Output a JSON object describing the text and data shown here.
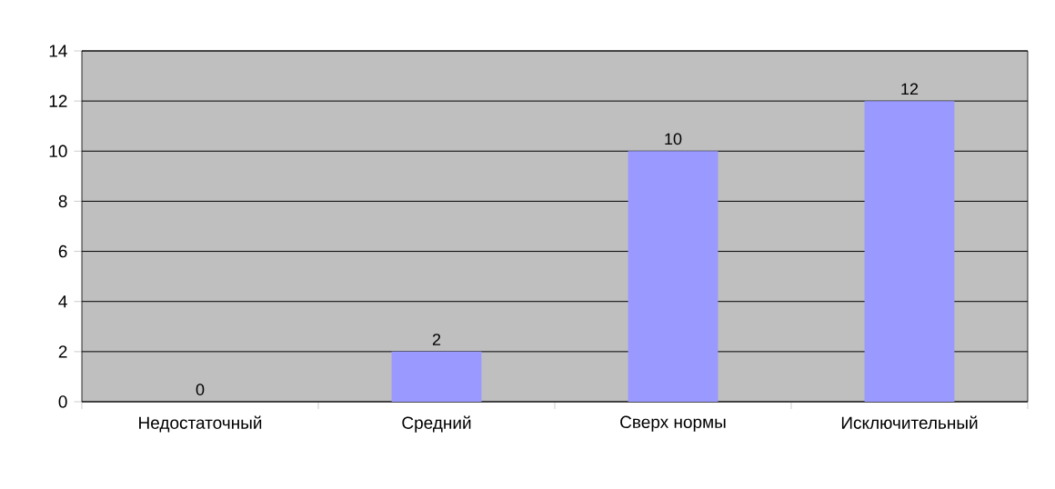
{
  "chart_data": {
    "type": "bar",
    "categories": [
      "Недостаточный",
      "Средний",
      "Сверх нормы",
      "Исключительный"
    ],
    "values": [
      0,
      2,
      10,
      12
    ],
    "color": "#9999ff",
    "ylim": [
      0,
      14
    ],
    "yticks": [
      0,
      2,
      4,
      6,
      8,
      10,
      12,
      14
    ],
    "grid": "y",
    "data_labels": true
  }
}
